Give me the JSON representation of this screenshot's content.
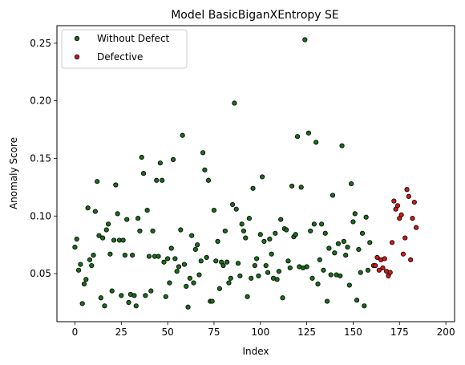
{
  "chart_data": {
    "type": "scatter",
    "title": "Model BasicBiganXEntropy SE",
    "xlabel": "Index",
    "ylabel": "Anomaly Score",
    "xlim": [
      -9.7,
      204.7
    ],
    "ylim": [
      0.0083,
      0.2652
    ],
    "xticks": [
      0,
      25,
      50,
      75,
      100,
      125,
      150,
      175,
      200
    ],
    "xtick_labels": [
      "0",
      "25",
      "50",
      "75",
      "100",
      "125",
      "150",
      "175",
      "200"
    ],
    "yticks": [
      0.05,
      0.1,
      0.15,
      0.2,
      0.25
    ],
    "ytick_labels": [
      "0.05",
      "0.10",
      "0.15",
      "0.20",
      "0.25"
    ],
    "grid": false,
    "legend": {
      "position": "upper-left"
    },
    "series": [
      {
        "name": "Without Defect",
        "color": "#1a6b1a",
        "edge_color": "#000000",
        "points": [
          [
            0,
            0.073
          ],
          [
            1,
            0.08
          ],
          [
            2,
            0.053
          ],
          [
            3,
            0.058
          ],
          [
            4,
            0.024
          ],
          [
            5,
            0.041
          ],
          [
            6,
            0.045
          ],
          [
            7,
            0.107
          ],
          [
            8,
            0.062
          ],
          [
            9,
            0.057
          ],
          [
            10,
            0.066
          ],
          [
            11,
            0.104
          ],
          [
            12,
            0.13
          ],
          [
            13,
            0.083
          ],
          [
            14,
            0.029
          ],
          [
            15,
            0.081
          ],
          [
            16,
            0.022
          ],
          [
            17,
            0.088
          ],
          [
            18,
            0.093
          ],
          [
            19,
            0.067
          ],
          [
            20,
            0.035
          ],
          [
            21,
            0.079
          ],
          [
            22,
            0.127
          ],
          [
            23,
            0.102
          ],
          [
            24,
            0.079
          ],
          [
            25,
            0.031
          ],
          [
            26,
            0.079
          ],
          [
            27,
            0.066
          ],
          [
            28,
            0.097
          ],
          [
            29,
            0.025
          ],
          [
            30,
            0.032
          ],
          [
            31,
            0.066
          ],
          [
            32,
            0.031
          ],
          [
            33,
            0.022
          ],
          [
            34,
            0.098
          ],
          [
            35,
            0.087
          ],
          [
            36,
            0.151
          ],
          [
            37,
            0.137
          ],
          [
            38,
            0.031
          ],
          [
            39,
            0.105
          ],
          [
            40,
            0.065
          ],
          [
            41,
            0.035
          ],
          [
            42,
            0.087
          ],
          [
            43,
            0.065
          ],
          [
            44,
            0.131
          ],
          [
            45,
            0.065
          ],
          [
            46,
            0.146
          ],
          [
            47,
            0.131
          ],
          [
            48,
            0.06
          ],
          [
            49,
            0.03
          ],
          [
            50,
            0.063
          ],
          [
            51,
            0.042
          ],
          [
            52,
            0.072
          ],
          [
            53,
            0.149
          ],
          [
            54,
            0.063
          ],
          [
            55,
            0.052
          ],
          [
            56,
            0.056
          ],
          [
            57,
            0.088
          ],
          [
            58,
            0.17
          ],
          [
            59,
            0.058
          ],
          [
            60,
            0.039
          ],
          [
            61,
            0.021
          ],
          [
            62,
            0.046
          ],
          [
            63,
            0.083
          ],
          [
            64,
            0.042
          ],
          [
            65,
            0.071
          ],
          [
            66,
            0.075
          ],
          [
            67,
            0.049
          ],
          [
            68,
            0.061
          ],
          [
            69,
            0.155
          ],
          [
            70,
            0.14
          ],
          [
            71,
            0.064
          ],
          [
            72,
            0.131
          ],
          [
            73,
            0.026
          ],
          [
            74,
            0.026
          ],
          [
            75,
            0.105
          ],
          [
            76,
            0.061
          ],
          [
            77,
            0.078
          ],
          [
            78,
            0.037
          ],
          [
            79,
            0.06
          ],
          [
            80,
            0.057
          ],
          [
            81,
            0.087
          ],
          [
            82,
            0.06
          ],
          [
            83,
            0.042
          ],
          [
            84,
            0.046
          ],
          [
            85,
            0.11
          ],
          [
            86,
            0.198
          ],
          [
            87,
            0.106
          ],
          [
            88,
            0.059
          ],
          [
            89,
            0.048
          ],
          [
            90,
            0.093
          ],
          [
            91,
            0.087
          ],
          [
            92,
            0.081
          ],
          [
            93,
            0.03
          ],
          [
            94,
            0.098
          ],
          [
            95,
            0.046
          ],
          [
            96,
            0.124
          ],
          [
            97,
            0.057
          ],
          [
            98,
            0.063
          ],
          [
            99,
            0.048
          ],
          [
            100,
            0.084
          ],
          [
            101,
            0.134
          ],
          [
            102,
            0.078
          ],
          [
            103,
            0.057
          ],
          [
            104,
            0.051
          ],
          [
            105,
            0.08
          ],
          [
            106,
            0.067
          ],
          [
            107,
            0.046
          ],
          [
            108,
            0.085
          ],
          [
            109,
            0.045
          ],
          [
            110,
            0.052
          ],
          [
            111,
            0.097
          ],
          [
            112,
            0.029
          ],
          [
            113,
            0.089
          ],
          [
            114,
            0.088
          ],
          [
            115,
            0.061
          ],
          [
            116,
            0.055
          ],
          [
            117,
            0.126
          ],
          [
            118,
            0.082
          ],
          [
            119,
            0.084
          ],
          [
            120,
            0.169
          ],
          [
            121,
            0.056
          ],
          [
            122,
            0.125
          ],
          [
            123,
            0.055
          ],
          [
            124,
            0.253
          ],
          [
            125,
            0.056
          ],
          [
            126,
            0.172
          ],
          [
            127,
            0.087
          ],
          [
            128,
            0.046
          ],
          [
            129,
            0.093
          ],
          [
            130,
            0.164
          ],
          [
            131,
            0.041
          ],
          [
            132,
            0.062
          ],
          [
            133,
            0.093
          ],
          [
            134,
            0.053
          ],
          [
            135,
            0.085
          ],
          [
            136,
            0.026
          ],
          [
            137,
            0.072
          ],
          [
            138,
            0.049
          ],
          [
            139,
            0.118
          ],
          [
            140,
            0.068
          ],
          [
            141,
            0.049
          ],
          [
            142,
            0.076
          ],
          [
            143,
            0.048
          ],
          [
            144,
            0.161
          ],
          [
            145,
            0.078
          ],
          [
            146,
            0.066
          ],
          [
            147,
            0.073
          ],
          [
            148,
            0.04
          ],
          [
            149,
            0.128
          ],
          [
            150,
            0.095
          ],
          [
            151,
            0.102
          ],
          [
            152,
            0.027
          ],
          [
            153,
            0.071
          ],
          [
            154,
            0.051
          ],
          [
            155,
            0.085
          ],
          [
            156,
            0.022
          ],
          [
            157,
            0.099
          ],
          [
            158,
            0.053
          ],
          [
            159,
            0.077
          ]
        ]
      },
      {
        "name": "Defective",
        "color": "#cc1a1a",
        "edge_color": "#000000",
        "points": [
          [
            161,
            0.057
          ],
          [
            162,
            0.057
          ],
          [
            163,
            0.064
          ],
          [
            164,
            0.053
          ],
          [
            165,
            0.062
          ],
          [
            166,
            0.055
          ],
          [
            167,
            0.063
          ],
          [
            168,
            0.052
          ],
          [
            169,
            0.048
          ],
          [
            170,
            0.051
          ],
          [
            171,
            0.077
          ],
          [
            172,
            0.113
          ],
          [
            173,
            0.106
          ],
          [
            174,
            0.109
          ],
          [
            175,
            0.098
          ],
          [
            176,
            0.101
          ],
          [
            177,
            0.067
          ],
          [
            178,
            0.081
          ],
          [
            179,
            0.123
          ],
          [
            180,
            0.117
          ],
          [
            181,
            0.062
          ],
          [
            182,
            0.098
          ],
          [
            183,
            0.112
          ],
          [
            184,
            0.09
          ]
        ]
      }
    ]
  }
}
